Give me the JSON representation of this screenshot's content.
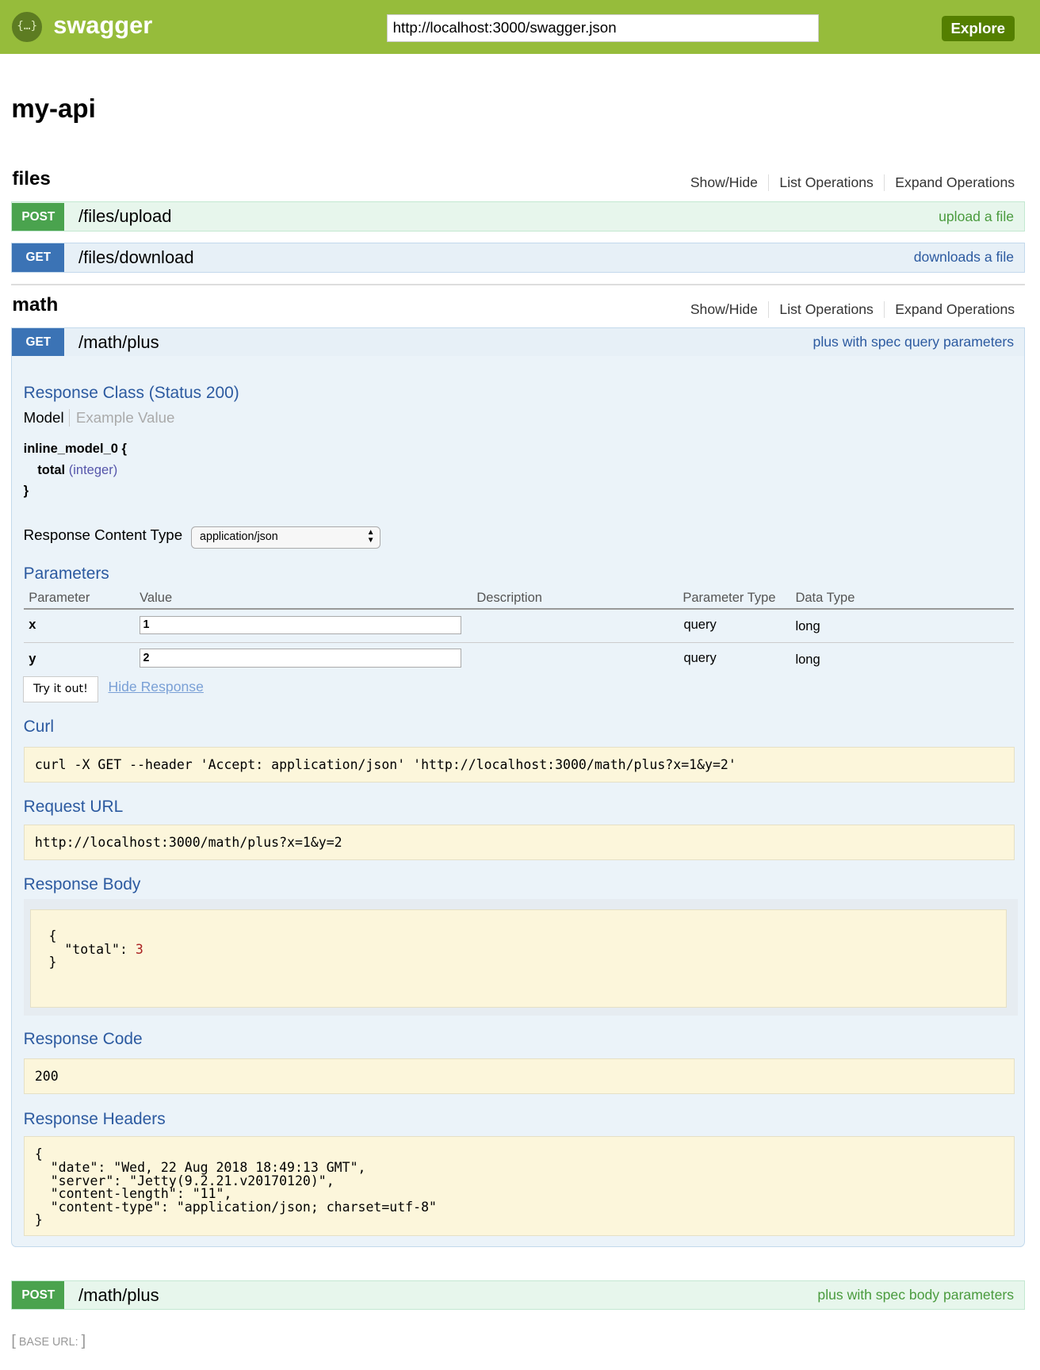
{
  "header": {
    "brand": "swagger",
    "logo_icon": "swagger-logo-icon",
    "logo_glyph": "{…}",
    "url": "http://localhost:3000/swagger.json",
    "explore": "Explore"
  },
  "title": "my-api",
  "sections": [
    {
      "name": "files",
      "links": [
        "Show/Hide",
        "List Operations",
        "Expand Operations"
      ],
      "ops": [
        {
          "method": "POST",
          "path": "/files/upload",
          "summary": "upload a file"
        },
        {
          "method": "GET",
          "path": "/files/download",
          "summary": "downloads a file"
        }
      ]
    },
    {
      "name": "math",
      "links": [
        "Show/Hide",
        "List Operations",
        "Expand Operations"
      ],
      "ops": [
        {
          "method": "GET",
          "path": "/math/plus",
          "summary": "plus with spec query parameters"
        },
        {
          "method": "POST",
          "path": "/math/plus",
          "summary": "plus with spec body parameters"
        }
      ]
    }
  ],
  "detail": {
    "response_class": "Response Class (Status 200)",
    "model_tab": "Model",
    "example_tab": "Example Value",
    "model_name": "inline_model_0 {",
    "prop": "total",
    "prop_type": "(integer)",
    "close": "}",
    "content_type_label": "Response Content Type",
    "content_type": "application/json",
    "parameters": "Parameters",
    "columns": [
      "Parameter",
      "Value",
      "Description",
      "Parameter Type",
      "Data Type"
    ],
    "rows": [
      {
        "name": "x",
        "value": "1",
        "ptype": "query",
        "dtype": "long"
      },
      {
        "name": "y",
        "value": "2",
        "ptype": "query",
        "dtype": "long"
      }
    ],
    "try": "Try it out!",
    "hide": "Hide Response",
    "curl_h": "Curl",
    "curl": "curl -X GET --header 'Accept: application/json' 'http://localhost:3000/math/plus?x=1&y=2'",
    "req_h": "Request URL",
    "req": "http://localhost:3000/math/plus?x=1&y=2",
    "body_h": "Response Body",
    "body_open": "{",
    "body_key": "  \"total\": ",
    "body_val": "3",
    "body_close": "}",
    "code_h": "Response Code",
    "code": "200",
    "headers_h": "Response Headers",
    "headers": "{\n  \"date\": \"Wed, 22 Aug 2018 18:49:13 GMT\",\n  \"server\": \"Jetty(9.2.21.v20170120)\",\n  \"content-length\": \"11\",\n  \"content-type\": \"application/json; charset=utf-8\"\n}"
  },
  "footer": {
    "base_url": "BASE URL"
  },
  "colors": {
    "header": "#96bc3b",
    "explore": "#547f00",
    "get": "#3b73b5",
    "post": "#4aa34e",
    "heading": "#2c5aa0"
  }
}
